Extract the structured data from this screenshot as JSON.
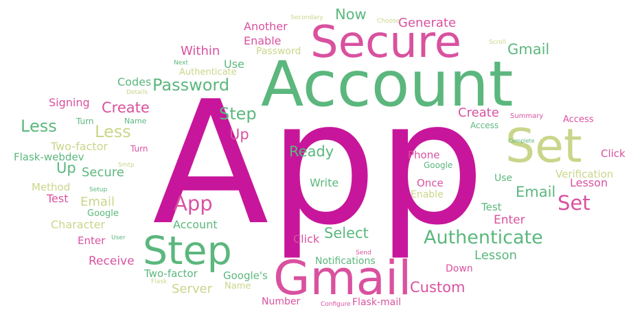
{
  "palette": {
    "magenta": "#c7169b",
    "pink": "#d9519f",
    "green": "#5bb77d",
    "lime": "#c9d68a"
  },
  "words": [
    {
      "text": "App",
      "color": "magenta"
    },
    {
      "text": "Account",
      "color": "green"
    },
    {
      "text": "Secure",
      "color": "pink"
    },
    {
      "text": "Gmail",
      "color": "pink"
    },
    {
      "text": "Set",
      "color": "lime"
    },
    {
      "text": "Step",
      "color": "green"
    },
    {
      "text": "Authenticate",
      "color": "green"
    },
    {
      "text": "Password",
      "color": "green"
    },
    {
      "text": "App",
      "color": "pink"
    },
    {
      "text": "Set",
      "color": "pink"
    },
    {
      "text": "Gmail",
      "color": "green"
    },
    {
      "text": "Less",
      "color": "green"
    },
    {
      "text": "Less",
      "color": "lime"
    },
    {
      "text": "Create",
      "color": "pink"
    },
    {
      "text": "Create",
      "color": "pink"
    },
    {
      "text": "Step",
      "color": "green"
    },
    {
      "text": "Up",
      "color": "pink"
    },
    {
      "text": "Up",
      "color": "green"
    },
    {
      "text": "Email",
      "color": "green"
    },
    {
      "text": "Email",
      "color": "lime"
    },
    {
      "text": "Ready",
      "color": "green"
    },
    {
      "text": "Select",
      "color": "green"
    },
    {
      "text": "Custom",
      "color": "pink"
    },
    {
      "text": "Lesson",
      "color": "green"
    },
    {
      "text": "Lesson",
      "color": "pink"
    },
    {
      "text": "Secure",
      "color": "green"
    },
    {
      "text": "Now",
      "color": "green"
    },
    {
      "text": "Generate",
      "color": "pink"
    },
    {
      "text": "Within",
      "color": "pink"
    },
    {
      "text": "Another",
      "color": "pink"
    },
    {
      "text": "Enable",
      "color": "pink"
    },
    {
      "text": "Password",
      "color": "lime"
    },
    {
      "text": "Use",
      "color": "green"
    },
    {
      "text": "Codes",
      "color": "green"
    },
    {
      "text": "Authenticate",
      "color": "lime"
    },
    {
      "text": "Signing",
      "color": "pink"
    },
    {
      "text": "Two-factor",
      "color": "lime"
    },
    {
      "text": "Flask-webdev",
      "color": "green"
    },
    {
      "text": "Method",
      "color": "lime"
    },
    {
      "text": "Test",
      "color": "pink"
    },
    {
      "text": "Character",
      "color": "lime"
    },
    {
      "text": "Receive",
      "color": "pink"
    },
    {
      "text": "Enter",
      "color": "pink"
    },
    {
      "text": "Google",
      "color": "green"
    },
    {
      "text": "Account",
      "color": "green"
    },
    {
      "text": "Write",
      "color": "green"
    },
    {
      "text": "Click",
      "color": "pink"
    },
    {
      "text": "Notifications",
      "color": "green"
    },
    {
      "text": "Two-factor",
      "color": "green"
    },
    {
      "text": "Server",
      "color": "lime"
    },
    {
      "text": "Name",
      "color": "lime"
    },
    {
      "text": "Google's",
      "color": "green"
    },
    {
      "text": "Number",
      "color": "pink"
    },
    {
      "text": "Flask-mail",
      "color": "pink"
    },
    {
      "text": "Down",
      "color": "pink"
    },
    {
      "text": "Test",
      "color": "green"
    },
    {
      "text": "Enter",
      "color": "pink"
    },
    {
      "text": "Use",
      "color": "green"
    },
    {
      "text": "Phone",
      "color": "pink"
    },
    {
      "text": "Google",
      "color": "green"
    },
    {
      "text": "Once",
      "color": "pink"
    },
    {
      "text": "Enable",
      "color": "lime"
    },
    {
      "text": "Verification",
      "color": "lime"
    },
    {
      "text": "Click",
      "color": "pink"
    },
    {
      "text": "Access",
      "color": "pink"
    },
    {
      "text": "Access",
      "color": "green"
    },
    {
      "text": "Summary",
      "color": "pink"
    },
    {
      "text": "Turn",
      "color": "green"
    },
    {
      "text": "Turn",
      "color": "pink"
    },
    {
      "text": "Name",
      "color": "green"
    },
    {
      "text": "Details",
      "color": "lime"
    },
    {
      "text": "Next",
      "color": "green"
    },
    {
      "text": "Secondary",
      "color": "lime"
    },
    {
      "text": "Choose",
      "color": "lime"
    },
    {
      "text": "Scroll",
      "color": "lime"
    },
    {
      "text": "Complete",
      "color": "green"
    },
    {
      "text": "Smtp",
      "color": "lime"
    },
    {
      "text": "Setup",
      "color": "green"
    },
    {
      "text": "User",
      "color": "green"
    },
    {
      "text": "Send",
      "color": "pink"
    },
    {
      "text": "Configure",
      "color": "pink"
    },
    {
      "text": "Flask",
      "color": "lime"
    }
  ]
}
